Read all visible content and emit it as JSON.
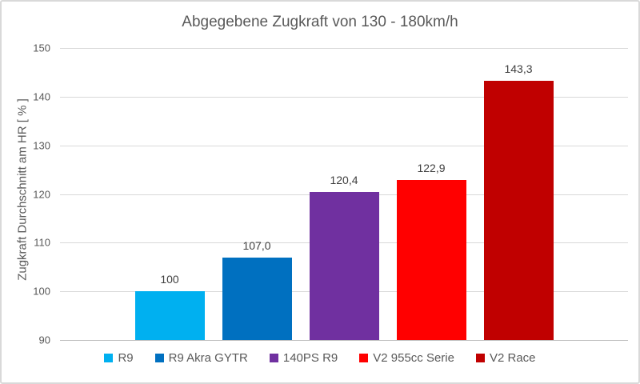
{
  "chart_data": {
    "type": "bar",
    "title": "Abgegebene Zugkraft von 130 - 180km/h",
    "xlabel": "",
    "ylabel": "Zugkraft Durchschnitt am HR [ % ]",
    "ylim": [
      90,
      150
    ],
    "yticks": [
      90,
      100,
      110,
      120,
      130,
      140,
      150
    ],
    "grid": true,
    "legend_position": "bottom",
    "categories": [
      "R9",
      "R9 Akra GYTR",
      "140PS R9",
      "V2 955cc Serie",
      "V2 Race"
    ],
    "values": [
      100,
      107.0,
      120.4,
      122.9,
      143.3
    ],
    "value_labels": [
      "100",
      "107,0",
      "120,4",
      "122,9",
      "143,3"
    ],
    "bar_colors": [
      "#00B0F0",
      "#0070C0",
      "#7030A0",
      "#FF0000",
      "#C00000"
    ]
  },
  "colors": {
    "background": "#FFFFFF",
    "border": "#D9D9D9",
    "gridline": "#D9D9D9",
    "axis_line": "#BFBFBF",
    "title_text": "#595959",
    "tick_text": "#595959",
    "bar_label_text": "#404040",
    "legend_text": "#595959"
  }
}
